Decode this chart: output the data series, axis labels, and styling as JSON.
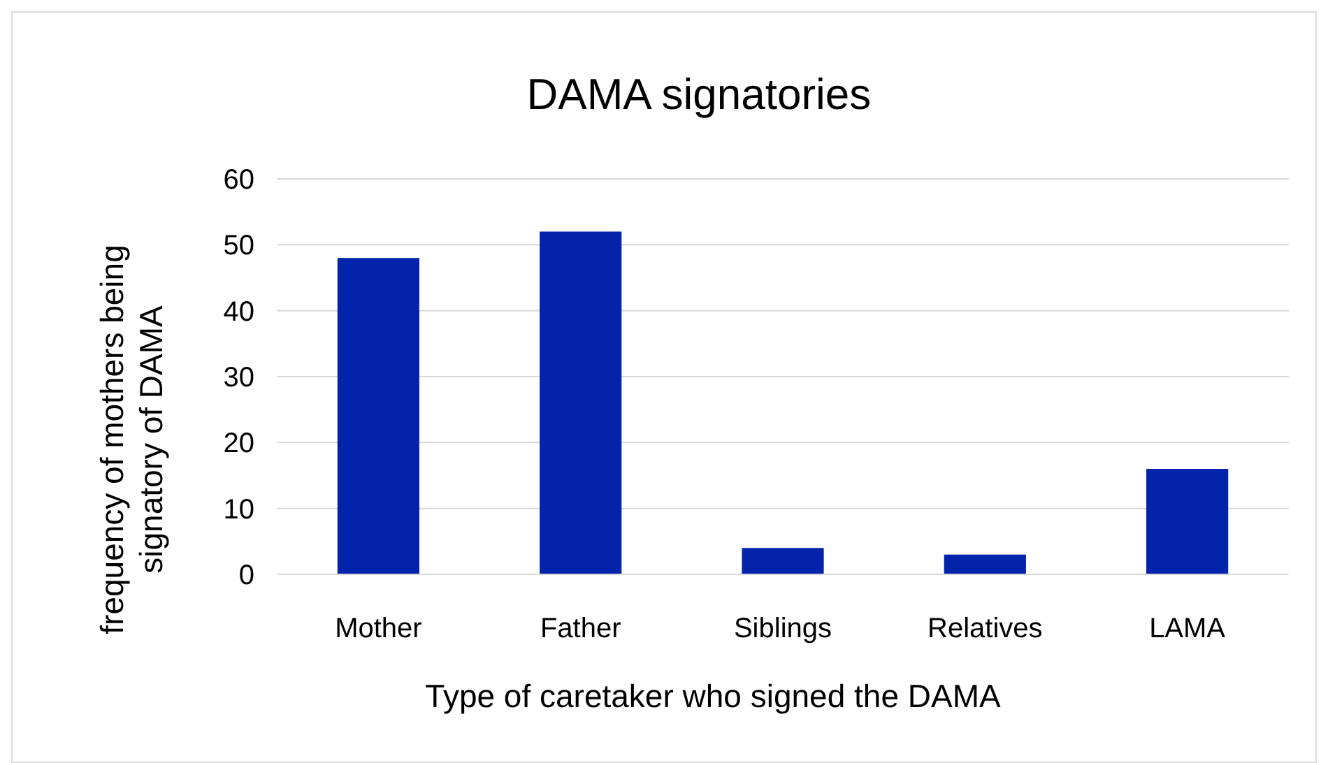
{
  "chart_data": {
    "type": "bar",
    "title": "DAMA signatories",
    "xlabel": "Type of caretaker who signed the DAMA",
    "ylabel": "frequency of mothers being signatory of DAMA",
    "categories": [
      "Mother",
      "Father",
      "Siblings",
      "Relatives",
      "LAMA"
    ],
    "values": [
      48,
      52,
      4,
      3,
      16
    ],
    "color": "#0323ab",
    "ylim": [
      0,
      60
    ],
    "yticks": [
      0,
      10,
      20,
      30,
      40,
      50,
      60
    ],
    "grid": "y"
  }
}
